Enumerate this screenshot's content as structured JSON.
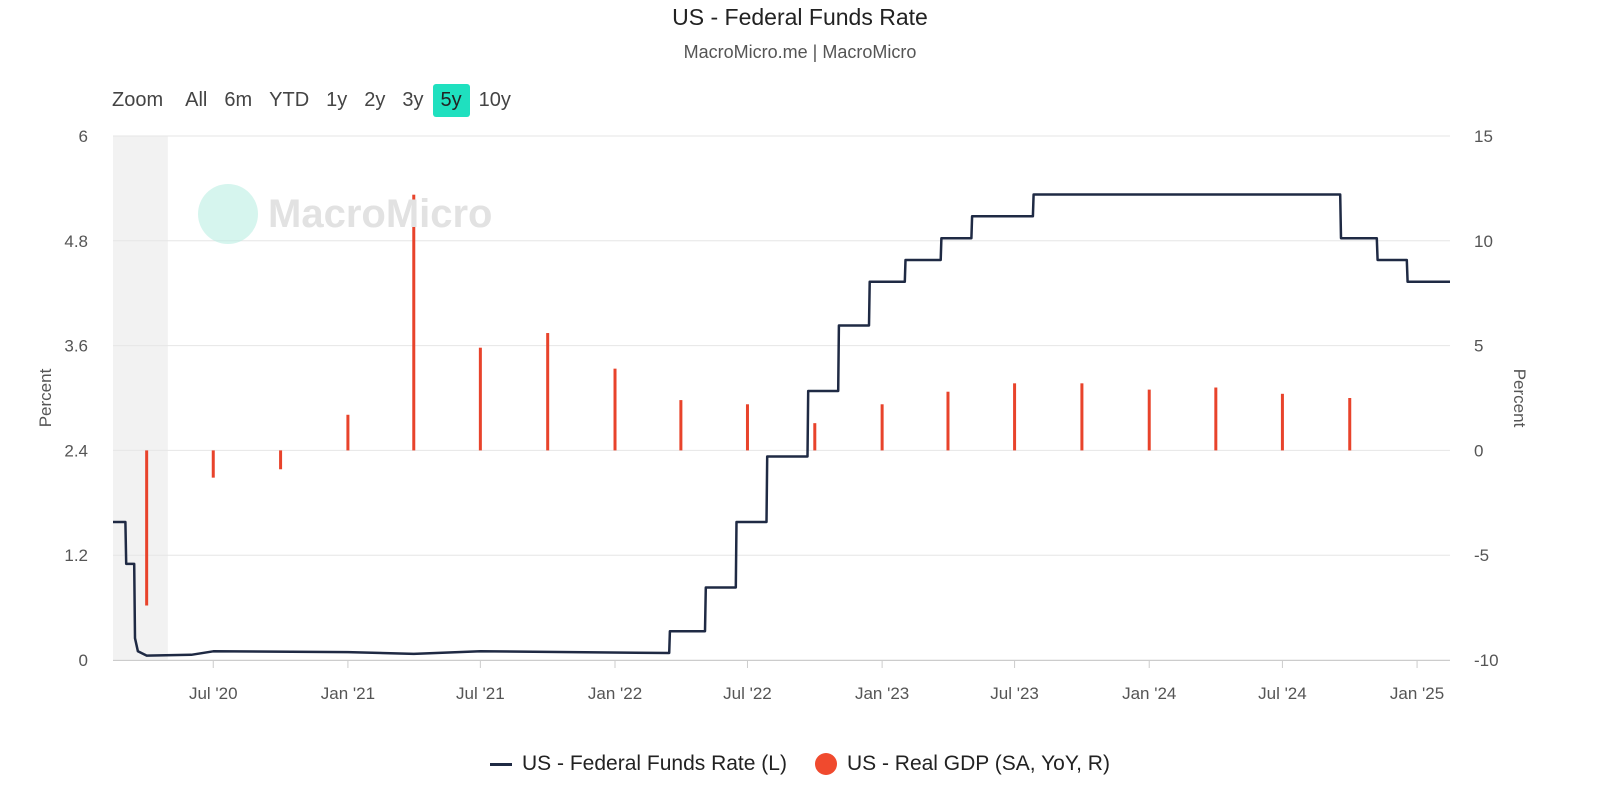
{
  "header": {
    "title": "US - Federal Funds Rate",
    "subtitle": "MacroMicro.me | MacroMicro"
  },
  "zoom": {
    "label": "Zoom",
    "options": [
      "All",
      "6m",
      "YTD",
      "1y",
      "2y",
      "3y",
      "5y",
      "10y"
    ],
    "selected": "5y"
  },
  "watermark": {
    "text": "MacroMicro"
  },
  "colors": {
    "rate_line": "#1f2a44",
    "gdp_bar": "#e8432b",
    "active_zoom": "#1fe0bf",
    "recession_band": "#f2f2f2"
  },
  "legend": {
    "rate": "US - Federal Funds Rate (L)",
    "gdp": "US - Real GDP (SA, YoY, R)"
  },
  "chart_data": {
    "type": "line",
    "title": "US - Federal Funds Rate",
    "subtitle": "MacroMicro.me | MacroMicro",
    "ylabel_left": "Percent",
    "ylabel_right": "Percent",
    "x_range": [
      "2020-02-15",
      "2025-02-15"
    ],
    "x_ticks": [
      {
        "date": "2020-07-01",
        "label": "Jul '20"
      },
      {
        "date": "2021-01-01",
        "label": "Jan '21"
      },
      {
        "date": "2021-07-01",
        "label": "Jul '21"
      },
      {
        "date": "2022-01-01",
        "label": "Jan '22"
      },
      {
        "date": "2022-07-01",
        "label": "Jul '22"
      },
      {
        "date": "2023-01-01",
        "label": "Jan '23"
      },
      {
        "date": "2023-07-01",
        "label": "Jul '23"
      },
      {
        "date": "2024-01-01",
        "label": "Jan '24"
      },
      {
        "date": "2024-07-01",
        "label": "Jul '24"
      },
      {
        "date": "2025-01-01",
        "label": "Jan '25"
      }
    ],
    "y_left": {
      "range": [
        0,
        6
      ],
      "ticks": [
        0,
        1.2,
        2.4,
        3.6,
        4.8,
        6
      ],
      "tick_labels": [
        "0",
        "1.2",
        "2.4",
        "3.6",
        "4.8",
        "6"
      ]
    },
    "y_right": {
      "range": [
        -10,
        15
      ],
      "ticks": [
        -10,
        -5,
        0,
        5,
        10,
        15
      ],
      "tick_labels": [
        "-10",
        "-5",
        "0",
        "5",
        "10",
        "15"
      ]
    },
    "grid": true,
    "legend_position": "bottom",
    "recession_band": [
      "2020-02-15",
      "2020-04-30"
    ],
    "series": [
      {
        "name": "US - Federal Funds Rate (L)",
        "axis": "left",
        "type": "step-line",
        "points": [
          [
            "2020-02-15",
            1.58
          ],
          [
            "2020-03-03",
            1.58
          ],
          [
            "2020-03-04",
            1.1
          ],
          [
            "2020-03-15",
            1.1
          ],
          [
            "2020-03-16",
            0.25
          ],
          [
            "2020-03-20",
            0.1
          ],
          [
            "2020-04-01",
            0.05
          ],
          [
            "2020-06-01",
            0.06
          ],
          [
            "2020-07-01",
            0.1
          ],
          [
            "2021-01-01",
            0.09
          ],
          [
            "2021-04-01",
            0.07
          ],
          [
            "2021-07-01",
            0.1
          ],
          [
            "2022-03-16",
            0.08
          ],
          [
            "2022-03-17",
            0.33
          ],
          [
            "2022-05-04",
            0.33
          ],
          [
            "2022-05-05",
            0.83
          ],
          [
            "2022-06-15",
            0.83
          ],
          [
            "2022-06-16",
            1.58
          ],
          [
            "2022-07-27",
            1.58
          ],
          [
            "2022-07-28",
            2.33
          ],
          [
            "2022-09-21",
            2.33
          ],
          [
            "2022-09-22",
            3.08
          ],
          [
            "2022-11-02",
            3.08
          ],
          [
            "2022-11-03",
            3.83
          ],
          [
            "2022-12-14",
            3.83
          ],
          [
            "2022-12-15",
            4.33
          ],
          [
            "2023-02-01",
            4.33
          ],
          [
            "2023-02-02",
            4.58
          ],
          [
            "2023-03-22",
            4.58
          ],
          [
            "2023-03-23",
            4.83
          ],
          [
            "2023-05-03",
            4.83
          ],
          [
            "2023-05-04",
            5.08
          ],
          [
            "2023-07-26",
            5.08
          ],
          [
            "2023-07-27",
            5.33
          ],
          [
            "2024-09-18",
            5.33
          ],
          [
            "2024-09-19",
            4.83
          ],
          [
            "2024-11-07",
            4.83
          ],
          [
            "2024-11-08",
            4.58
          ],
          [
            "2024-12-18",
            4.58
          ],
          [
            "2024-12-19",
            4.33
          ],
          [
            "2025-02-15",
            4.33
          ]
        ]
      },
      {
        "name": "US - Real GDP (SA, YoY, R)",
        "axis": "right",
        "type": "bar",
        "points": [
          [
            "2020-04-01",
            -7.4
          ],
          [
            "2020-07-01",
            -1.3
          ],
          [
            "2020-10-01",
            -0.9
          ],
          [
            "2021-01-01",
            1.7
          ],
          [
            "2021-04-01",
            12.2
          ],
          [
            "2021-07-01",
            4.9
          ],
          [
            "2021-10-01",
            5.6
          ],
          [
            "2022-01-01",
            3.9
          ],
          [
            "2022-04-01",
            2.4
          ],
          [
            "2022-07-01",
            2.2
          ],
          [
            "2022-10-01",
            1.3
          ],
          [
            "2023-01-01",
            2.2
          ],
          [
            "2023-04-01",
            2.8
          ],
          [
            "2023-07-01",
            3.2
          ],
          [
            "2023-10-01",
            3.2
          ],
          [
            "2024-01-01",
            2.9
          ],
          [
            "2024-04-01",
            3.0
          ],
          [
            "2024-07-01",
            2.7
          ],
          [
            "2024-10-01",
            2.5
          ]
        ]
      }
    ]
  }
}
